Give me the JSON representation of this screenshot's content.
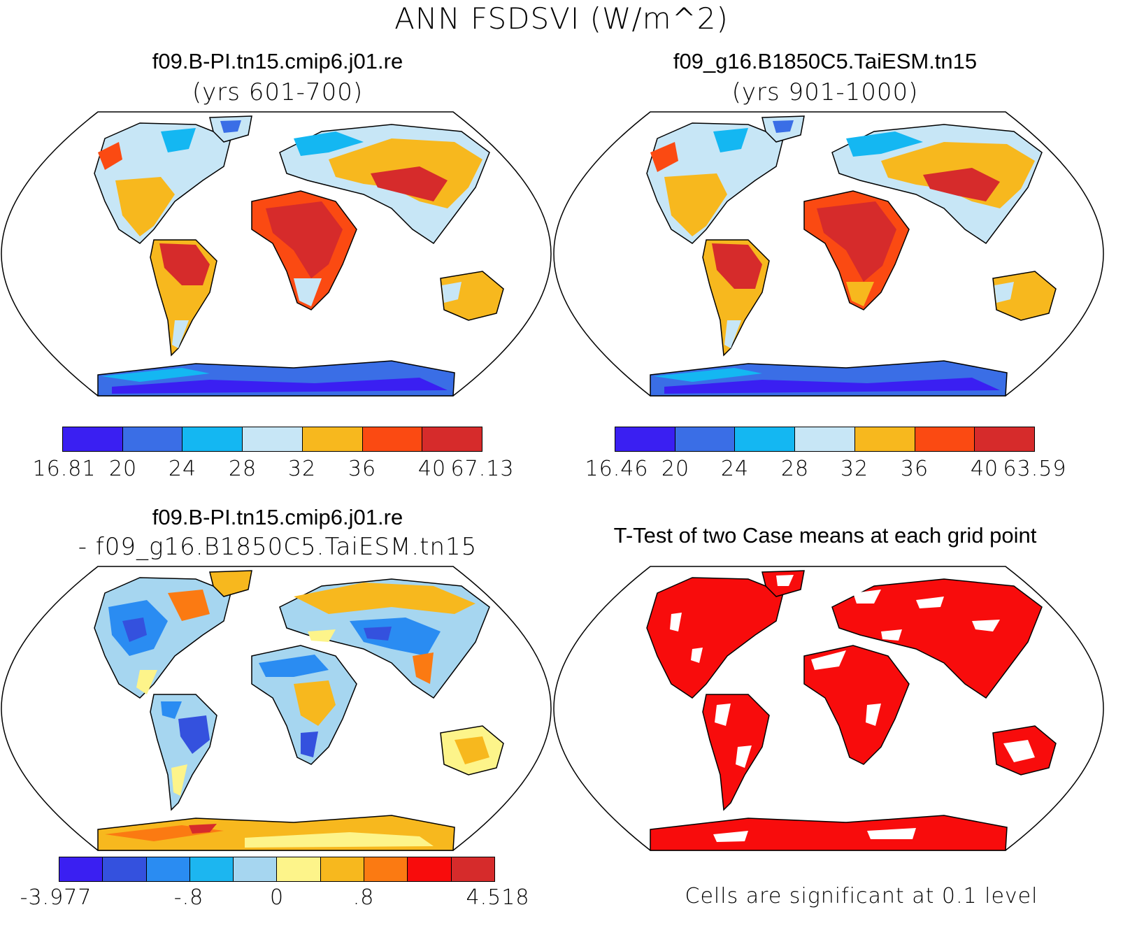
{
  "main_title": "ANN FSDSVI (W/m^2)",
  "panels": {
    "top_left": {
      "title": "f09.B-PI.tn15.cmip6.j01.re",
      "subtitle": "(yrs 601-700)",
      "colorbar": {
        "colors": [
          "#3a1ff2",
          "#3a6ee6",
          "#14b7f2",
          "#c7e6f6",
          "#f7b81e",
          "#fb4a12",
          "#d62b2b"
        ],
        "labels": [
          "16.81",
          "20",
          "24",
          "28",
          "32",
          "36",
          "40",
          "67.13"
        ]
      }
    },
    "top_right": {
      "title": "f09_g16.B1850C5.TaiESM.tn15",
      "subtitle": "(yrs 901-1000)",
      "colorbar": {
        "colors": [
          "#3a1ff2",
          "#3a6ee6",
          "#14b7f2",
          "#c7e6f6",
          "#f7b81e",
          "#fb4a12",
          "#d62b2b"
        ],
        "labels": [
          "16.46",
          "20",
          "24",
          "28",
          "32",
          "36",
          "40",
          "63.59"
        ]
      }
    },
    "bottom_left": {
      "title": "f09.B-PI.tn15.cmip6.j01.re",
      "subtitle": "- f09_g16.B1850C5.TaiESM.tn15",
      "colorbar": {
        "colors": [
          "#3a1ff2",
          "#3451de",
          "#2a8cf2",
          "#1cb6f0",
          "#a6d6f0",
          "#fdf48a",
          "#f7b81e",
          "#fb7a12",
          "#f80c0c",
          "#d62b2b"
        ],
        "labels": [
          "-3.977",
          "-.8",
          "0",
          ".8",
          "4.518"
        ]
      }
    },
    "bottom_right": {
      "title": "T-Test of two Case means at each grid point",
      "footnote": "Cells are significant at 0.1 level"
    }
  },
  "palette": {
    "land_fill_ttest": "#f80c0c",
    "outline": "#000000"
  }
}
